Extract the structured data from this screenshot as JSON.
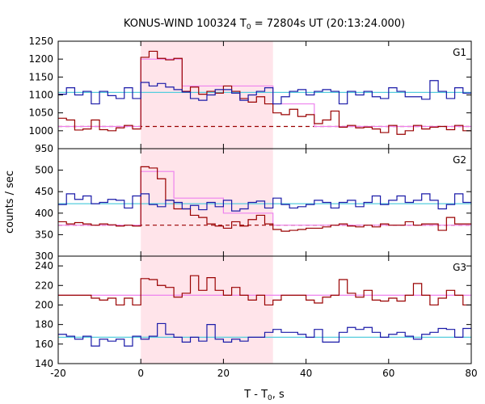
{
  "title": {
    "main": "KONUS-WIND 100324 T",
    "sub": "0",
    "rest": " = 72804s UT (20:13:24.000)"
  },
  "ylabel": "counts / sec",
  "xlabel": {
    "main": "T - T",
    "sub": "0",
    "rest": ", s"
  },
  "colors": {
    "red": "#990000",
    "blue": "#1a1aa8",
    "pink": "#ee82ee",
    "cyan": "#55ccdd",
    "shade": "#ffe4ea"
  },
  "chart_data": [
    {
      "type": "line",
      "panel": "G1",
      "label": "G1",
      "xlim": [
        -20,
        80
      ],
      "ylim": [
        950,
        1250
      ],
      "yticks": [
        950,
        1000,
        1050,
        1100,
        1150,
        1200,
        1250
      ],
      "xticks": [
        -20,
        0,
        20,
        40,
        60,
        80
      ],
      "shaded": [
        0,
        32
      ],
      "bin_edges": [
        -20,
        -18,
        -16,
        -14,
        -12,
        -10,
        -8,
        -6,
        -4,
        -2,
        0,
        2,
        4,
        6,
        8,
        10,
        12,
        14,
        16,
        18,
        20,
        22,
        24,
        26,
        28,
        30,
        32,
        34,
        36,
        38,
        40,
        42,
        44,
        46,
        48,
        50,
        52,
        54,
        56,
        58,
        60,
        62,
        64,
        66,
        68,
        70,
        72,
        74,
        76,
        78,
        80
      ],
      "series": [
        {
          "color": "red",
          "values": [
            1035,
            1030,
            1002,
            1005,
            1030,
            1003,
            1000,
            1008,
            1015,
            1005,
            1205,
            1222,
            1202,
            1198,
            1202,
            1110,
            1122,
            1102,
            1110,
            1105,
            1125,
            1110,
            1090,
            1080,
            1095,
            1075,
            1050,
            1045,
            1060,
            1040,
            1045,
            1020,
            1030,
            1055,
            1010,
            1015,
            1008,
            1010,
            1005,
            995,
            1015,
            990,
            1000,
            1015,
            1005,
            1010,
            1012,
            1003,
            1015,
            1000
          ]
        },
        {
          "color": "blue",
          "values": [
            1102,
            1120,
            1100,
            1110,
            1075,
            1110,
            1098,
            1090,
            1120,
            1090,
            1135,
            1125,
            1132,
            1122,
            1115,
            1108,
            1090,
            1085,
            1100,
            1115,
            1115,
            1105,
            1085,
            1100,
            1110,
            1120,
            1075,
            1095,
            1110,
            1115,
            1100,
            1110,
            1115,
            1110,
            1075,
            1110,
            1100,
            1110,
            1095,
            1090,
            1120,
            1110,
            1095,
            1095,
            1088,
            1140,
            1110,
            1090,
            1120,
            1105
          ]
        },
        {
          "color": "pink",
          "values": [
            1012,
            1012,
            1012,
            1012,
            1012,
            1012,
            1012,
            1012,
            1012,
            1012,
            1200,
            1200,
            1200,
            1200,
            1200,
            1125,
            1125,
            1125,
            1125,
            1125,
            1125,
            1125,
            1125,
            1125,
            1125,
            1125,
            1075,
            1075,
            1075,
            1075,
            1075,
            1012,
            1012,
            1012,
            1012,
            1012,
            1012,
            1012,
            1012,
            1012,
            1012,
            1012,
            1012,
            1012,
            1012,
            1012,
            1012,
            1012,
            1012,
            1012
          ]
        }
      ],
      "hlines": [
        {
          "color": "cyan",
          "value": 1107,
          "dashed": false
        },
        {
          "color": "red",
          "value": 1012,
          "dashed": true
        }
      ]
    },
    {
      "type": "line",
      "panel": "G2",
      "label": "G2",
      "xlim": [
        -20,
        80
      ],
      "ylim": [
        300,
        550
      ],
      "yticks": [
        300,
        350,
        400,
        450,
        500
      ],
      "xticks": [
        -20,
        0,
        20,
        40,
        60,
        80
      ],
      "shaded": [
        0,
        32
      ],
      "bin_edges": [
        -20,
        -18,
        -16,
        -14,
        -12,
        -10,
        -8,
        -6,
        -4,
        -2,
        0,
        2,
        4,
        6,
        8,
        10,
        12,
        14,
        16,
        18,
        20,
        22,
        24,
        26,
        28,
        30,
        32,
        34,
        36,
        38,
        40,
        42,
        44,
        46,
        48,
        50,
        52,
        54,
        56,
        58,
        60,
        62,
        64,
        66,
        68,
        70,
        72,
        74,
        76,
        78,
        80
      ],
      "series": [
        {
          "color": "red",
          "values": [
            380,
            375,
            378,
            375,
            372,
            375,
            373,
            370,
            372,
            370,
            508,
            505,
            480,
            430,
            410,
            410,
            395,
            390,
            375,
            370,
            365,
            380,
            370,
            385,
            395,
            375,
            362,
            358,
            360,
            362,
            365,
            365,
            368,
            372,
            375,
            370,
            368,
            372,
            368,
            375,
            372,
            372,
            380,
            372,
            375,
            375,
            360,
            390,
            375,
            375
          ]
        },
        {
          "color": "blue",
          "values": [
            420,
            445,
            432,
            440,
            422,
            425,
            432,
            430,
            412,
            440,
            445,
            420,
            415,
            430,
            425,
            410,
            418,
            408,
            425,
            415,
            430,
            405,
            410,
            425,
            428,
            412,
            435,
            420,
            412,
            415,
            420,
            430,
            425,
            412,
            425,
            430,
            415,
            425,
            440,
            420,
            430,
            440,
            425,
            430,
            445,
            430,
            410,
            420,
            445,
            425
          ]
        },
        {
          "color": "pink",
          "values": [
            372,
            372,
            372,
            372,
            372,
            372,
            372,
            372,
            372,
            372,
            497,
            497,
            497,
            497,
            435,
            435,
            435,
            435,
            435,
            435,
            400,
            400,
            400,
            400,
            400,
            400,
            372,
            372,
            372,
            372,
            372,
            372,
            372,
            372,
            372,
            372,
            372,
            372,
            372,
            372,
            372,
            372,
            372,
            372,
            372,
            372,
            372,
            372,
            372,
            372
          ]
        }
      ],
      "hlines": [
        {
          "color": "cyan",
          "value": 422,
          "dashed": false
        },
        {
          "color": "red",
          "value": 372,
          "dashed": true
        }
      ]
    },
    {
      "type": "line",
      "panel": "G3",
      "label": "G3",
      "xlim": [
        -20,
        80
      ],
      "ylim": [
        140,
        250
      ],
      "yticks": [
        140,
        160,
        180,
        200,
        220,
        240
      ],
      "xticks": [
        -20,
        0,
        20,
        40,
        60,
        80
      ],
      "shaded": [
        0,
        32
      ],
      "bin_edges": [
        -20,
        -18,
        -16,
        -14,
        -12,
        -10,
        -8,
        -6,
        -4,
        -2,
        0,
        2,
        4,
        6,
        8,
        10,
        12,
        14,
        16,
        18,
        20,
        22,
        24,
        26,
        28,
        30,
        32,
        34,
        36,
        38,
        40,
        42,
        44,
        46,
        48,
        50,
        52,
        54,
        56,
        58,
        60,
        62,
        64,
        66,
        68,
        70,
        72,
        74,
        76,
        78,
        80
      ],
      "series": [
        {
          "color": "red",
          "values": [
            210,
            210,
            210,
            210,
            207,
            205,
            207,
            200,
            207,
            200,
            227,
            226,
            220,
            218,
            208,
            212,
            230,
            215,
            228,
            215,
            210,
            218,
            210,
            205,
            210,
            200,
            205,
            210,
            210,
            210,
            205,
            202,
            208,
            210,
            226,
            212,
            208,
            215,
            205,
            204,
            207,
            204,
            210,
            222,
            210,
            200,
            207,
            215,
            210,
            200
          ]
        },
        {
          "color": "blue",
          "values": [
            170,
            168,
            165,
            168,
            158,
            165,
            163,
            165,
            158,
            168,
            165,
            168,
            181,
            170,
            167,
            162,
            167,
            163,
            180,
            165,
            162,
            165,
            163,
            167,
            167,
            172,
            175,
            172,
            172,
            170,
            167,
            175,
            162,
            162,
            172,
            177,
            175,
            177,
            172,
            167,
            170,
            172,
            168,
            165,
            170,
            172,
            176,
            175,
            167,
            176
          ]
        },
        {
          "color": "pink",
          "values": [
            210,
            210,
            210,
            210,
            210,
            210,
            210,
            210,
            210,
            210,
            210,
            210,
            210,
            210,
            210,
            210,
            210,
            210,
            210,
            210,
            210,
            210,
            210,
            210,
            210,
            210,
            210,
            210,
            210,
            210,
            210,
            210,
            210,
            210,
            210,
            210,
            210,
            210,
            210,
            210,
            210,
            210,
            210,
            210,
            210,
            210,
            210,
            210,
            210,
            210
          ]
        }
      ],
      "hlines": [
        {
          "color": "cyan",
          "value": 167,
          "dashed": false
        }
      ]
    }
  ]
}
